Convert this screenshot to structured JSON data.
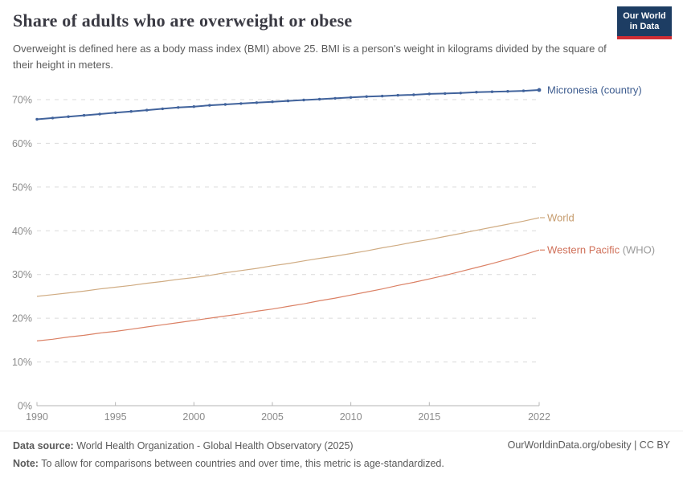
{
  "header": {
    "title": "Share of adults who are overweight or obese",
    "subtitle": "Overweight is defined here as a body mass index (BMI) above 25. BMI is a person's weight in kilograms divided by the square of their height in meters."
  },
  "logo": {
    "line1": "Our World",
    "line2": "in Data",
    "bg_color": "#1d3d63",
    "accent_color": "#d02e35"
  },
  "chart_data": {
    "type": "line",
    "title": "Share of adults who are overweight or obese",
    "xlabel": "",
    "ylabel": "",
    "x": [
      1990,
      1991,
      1992,
      1993,
      1994,
      1995,
      1996,
      1997,
      1998,
      1999,
      2000,
      2001,
      2002,
      2003,
      2004,
      2005,
      2006,
      2007,
      2008,
      2009,
      2010,
      2011,
      2012,
      2013,
      2014,
      2015,
      2016,
      2017,
      2018,
      2019,
      2020,
      2021,
      2022
    ],
    "x_ticks": [
      1990,
      1995,
      2000,
      2005,
      2010,
      2015,
      2022
    ],
    "ylim": [
      0,
      70
    ],
    "y_ticks": [
      0,
      10,
      20,
      30,
      40,
      50,
      60,
      70
    ],
    "y_tick_labels": [
      "0%",
      "10%",
      "20%",
      "30%",
      "40%",
      "50%",
      "60%",
      "70%"
    ],
    "grid": "horizontal-dashed",
    "grid_color": "#dadada",
    "axis_color": "#b5b5b5",
    "tick_label_color": "#8b8b8b",
    "legend_position": "right-of-line-labels",
    "series": [
      {
        "name": "Micronesia (country)",
        "label": "Micronesia (country)",
        "label_suffix": "",
        "line_color": "#41639c",
        "label_color": "#3d5c8f",
        "suffix_color": "#9a9a9a",
        "line_width": 2,
        "markers": true,
        "values": [
          65.5,
          65.8,
          66.1,
          66.4,
          66.7,
          67.0,
          67.3,
          67.6,
          67.9,
          68.2,
          68.4,
          68.7,
          68.9,
          69.1,
          69.3,
          69.5,
          69.7,
          69.9,
          70.1,
          70.3,
          70.5,
          70.7,
          70.8,
          71.0,
          71.1,
          71.3,
          71.4,
          71.5,
          71.7,
          71.8,
          71.9,
          72.0,
          72.2
        ]
      },
      {
        "name": "World",
        "label": "World",
        "label_suffix": "",
        "line_color": "#d0ac83",
        "label_color": "#c69c6e",
        "suffix_color": "#9a9a9a",
        "line_width": 1.2,
        "markers": false,
        "values": [
          25.0,
          25.4,
          25.8,
          26.2,
          26.7,
          27.1,
          27.5,
          28.0,
          28.4,
          28.9,
          29.3,
          29.8,
          30.4,
          30.9,
          31.4,
          32.0,
          32.5,
          33.1,
          33.7,
          34.2,
          34.8,
          35.4,
          36.1,
          36.7,
          37.4,
          38.0,
          38.7,
          39.4,
          40.1,
          40.8,
          41.5,
          42.2,
          43.0
        ]
      },
      {
        "name": "Western Pacific (WHO)",
        "label": "Western Pacific",
        "label_suffix": " (WHO)",
        "line_color": "#db8165",
        "label_color": "#d0715a",
        "suffix_color": "#9a9a9a",
        "line_width": 1.2,
        "markers": false,
        "values": [
          14.8,
          15.2,
          15.7,
          16.1,
          16.6,
          17.0,
          17.5,
          18.0,
          18.5,
          19.0,
          19.5,
          20.0,
          20.5,
          21.0,
          21.6,
          22.1,
          22.7,
          23.3,
          24.0,
          24.6,
          25.3,
          26.0,
          26.7,
          27.5,
          28.2,
          29.0,
          29.8,
          30.7,
          31.6,
          32.5,
          33.5,
          34.5,
          35.6
        ]
      }
    ]
  },
  "footer": {
    "source_label": "Data source:",
    "source_text": " World Health Organization - Global Health Observatory (2025)",
    "note_label": "Note:",
    "note_text": " To allow for comparisons between countries and over time, this metric is age-standardized.",
    "license": "OurWorldinData.org/obesity | CC BY"
  }
}
